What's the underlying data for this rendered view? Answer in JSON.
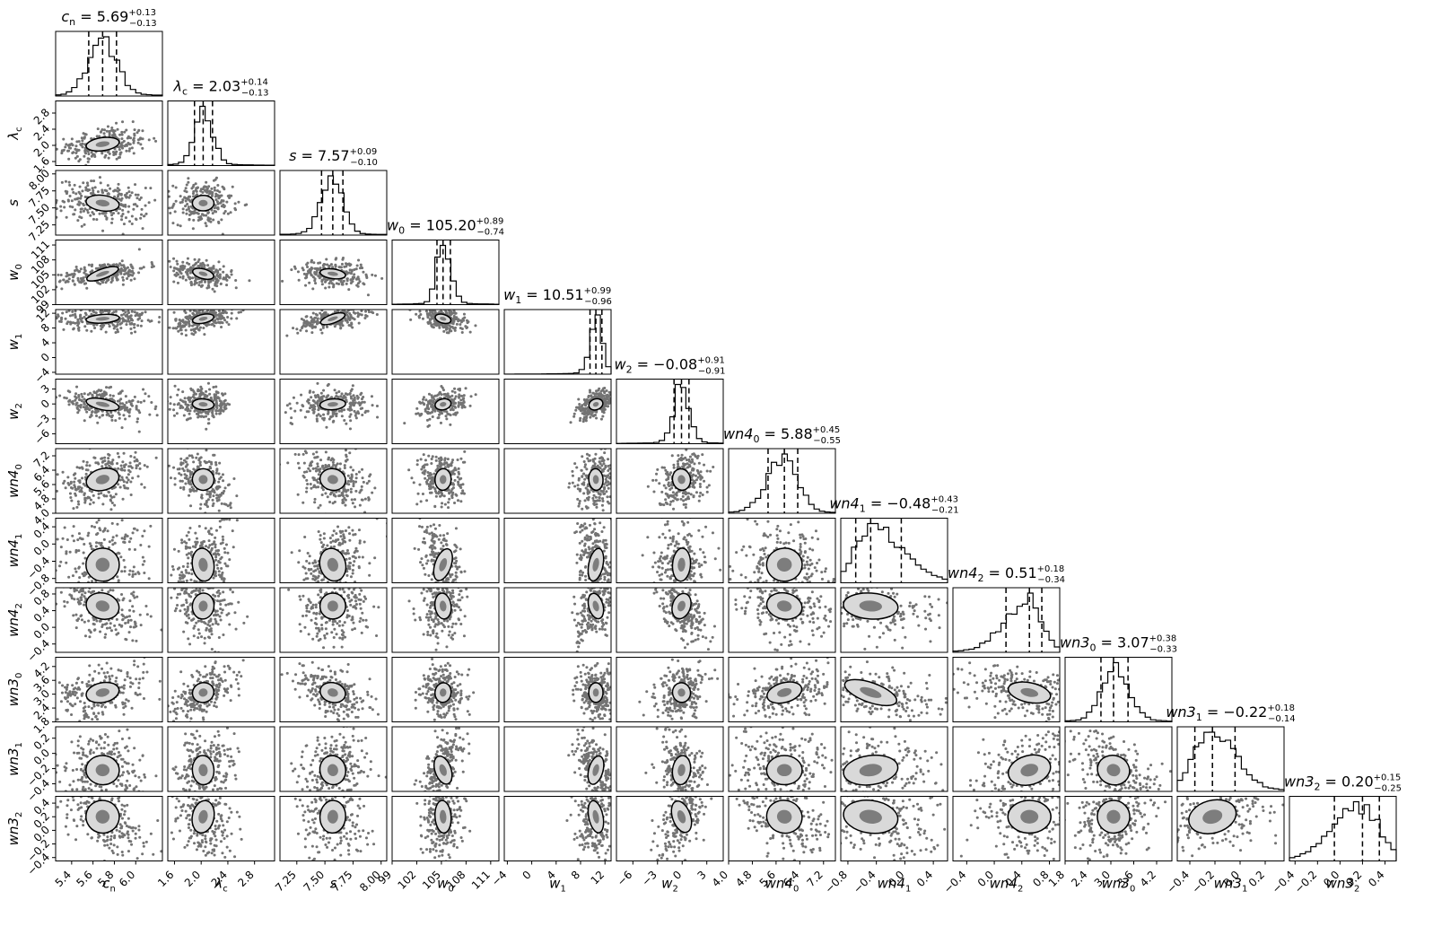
{
  "chart_data": {
    "type": "corner",
    "parameters": [
      {
        "key": "c_n",
        "label": "c_n",
        "title": "c_n = 5.69^{+0.13}_{-0.13}",
        "median": 5.69,
        "plus": 0.13,
        "minus": 0.13,
        "range": [
          5.25,
          6.25
        ],
        "ticks": [
          5.4,
          5.6,
          5.8,
          6.0
        ],
        "tick_labels": [
          "5.4",
          "5.6",
          "5.8",
          "6.0"
        ]
      },
      {
        "key": "lambda_c",
        "label": "λ_c",
        "title": "λ_c = 2.03^{+0.14}_{-0.13}",
        "median": 2.03,
        "plus": 0.14,
        "minus": 0.13,
        "range": [
          1.5,
          3.1
        ],
        "ticks": [
          1.6,
          2.0,
          2.4,
          2.8
        ],
        "tick_labels": [
          "1.6",
          "2.0",
          "2.4",
          "2.8"
        ]
      },
      {
        "key": "s",
        "label": "s",
        "title": "s = 7.57^{+0.09}_{-0.10}",
        "median": 7.57,
        "plus": 0.09,
        "minus": 0.1,
        "range": [
          7.1,
          8.05
        ],
        "ticks": [
          7.25,
          7.5,
          7.75,
          8.0
        ],
        "tick_labels": [
          "7.25",
          "7.50",
          "7.75",
          "8.00"
        ]
      },
      {
        "key": "w_0",
        "label": "w_0",
        "title": "w_0 = 105.20^{+0.89}_{-0.74}",
        "median": 105.2,
        "plus": 0.89,
        "minus": 0.74,
        "range": [
          99,
          112
        ],
        "ticks": [
          99,
          102,
          105,
          108,
          111
        ],
        "tick_labels": [
          "99",
          "102",
          "105",
          "108",
          "111"
        ]
      },
      {
        "key": "w_1",
        "label": "w_1",
        "title": "w_1 = 10.51^{+0.99}_{-0.96}",
        "median": 10.51,
        "plus": 0.99,
        "minus": 0.96,
        "range": [
          -4.5,
          13
        ],
        "ticks": [
          -4,
          0,
          4,
          8,
          12
        ],
        "tick_labels": [
          "−4",
          "0",
          "4",
          "8",
          "12"
        ]
      },
      {
        "key": "w_2",
        "label": "w_2",
        "title": "w_2 = −0.08^{+0.91}_{-0.91}",
        "median": -0.08,
        "plus": 0.91,
        "minus": 0.91,
        "range": [
          -8,
          5
        ],
        "ticks": [
          -6,
          -3,
          0,
          3
        ],
        "tick_labels": [
          "−6",
          "−3",
          "0",
          "3"
        ]
      },
      {
        "key": "wn4_0",
        "label": "wn4_0",
        "title": "wn4_0 = 5.88^{+0.45}_{-0.55}",
        "median": 5.88,
        "plus": 0.45,
        "minus": 0.55,
        "range": [
          4.0,
          7.6
        ],
        "ticks": [
          4.0,
          4.8,
          5.6,
          6.4,
          7.2
        ],
        "tick_labels": [
          "4.0",
          "4.8",
          "5.6",
          "6.4",
          "7.2"
        ]
      },
      {
        "key": "wn4_1",
        "label": "wn4_1",
        "title": "wn4_1 = −0.48^{+0.43}_{-0.21}",
        "median": -0.48,
        "plus": 0.43,
        "minus": 0.21,
        "range": [
          -0.9,
          0.6
        ],
        "ticks": [
          -0.8,
          -0.4,
          0.0,
          0.4
        ],
        "tick_labels": [
          "−0.8",
          "−0.4",
          "0.0",
          "0.4"
        ]
      },
      {
        "key": "wn4_2",
        "label": "wn4_2",
        "title": "wn4_2 = 0.51^{+0.18}_{-0.34}",
        "median": 0.51,
        "plus": 0.18,
        "minus": 0.34,
        "range": [
          -0.6,
          0.95
        ],
        "ticks": [
          -0.4,
          0.0,
          0.4,
          0.8
        ],
        "tick_labels": [
          "−0.4",
          "0.0",
          "0.4",
          "0.8"
        ]
      },
      {
        "key": "wn3_0",
        "label": "wn3_0",
        "title": "wn3_0 = 3.07^{+0.38}_{-0.33}",
        "median": 3.07,
        "plus": 0.38,
        "minus": 0.33,
        "range": [
          1.8,
          4.6
        ],
        "ticks": [
          1.8,
          2.4,
          3.0,
          3.6,
          4.2
        ],
        "tick_labels": [
          "1.8",
          "2.4",
          "3.0",
          "3.6",
          "4.2"
        ]
      },
      {
        "key": "wn3_1",
        "label": "wn3_1",
        "title": "wn3_1 = −0.22^{+0.18}_{-0.14}",
        "median": -0.22,
        "plus": 0.18,
        "minus": 0.14,
        "range": [
          -0.5,
          0.35
        ],
        "ticks": [
          -0.4,
          -0.2,
          0.0,
          0.2
        ],
        "tick_labels": [
          "−0.4",
          "−0.2",
          "0.0",
          "0.2"
        ]
      },
      {
        "key": "wn3_2",
        "label": "wn3_2",
        "title": "wn3_2 = 0.20^{+0.15}_{-0.25}",
        "median": 0.2,
        "plus": 0.15,
        "minus": 0.25,
        "range": [
          -0.45,
          0.5
        ],
        "ticks": [
          -0.4,
          -0.2,
          0.0,
          0.2,
          0.4
        ],
        "tick_labels": [
          "−0.4",
          "−0.2",
          "0.0",
          "0.2",
          "0.4"
        ]
      }
    ],
    "quantiles": [
      0.16,
      0.5,
      0.84
    ],
    "colors": {
      "ink": "#000000",
      "frame": "#000000",
      "background": "#ffffff"
    }
  }
}
